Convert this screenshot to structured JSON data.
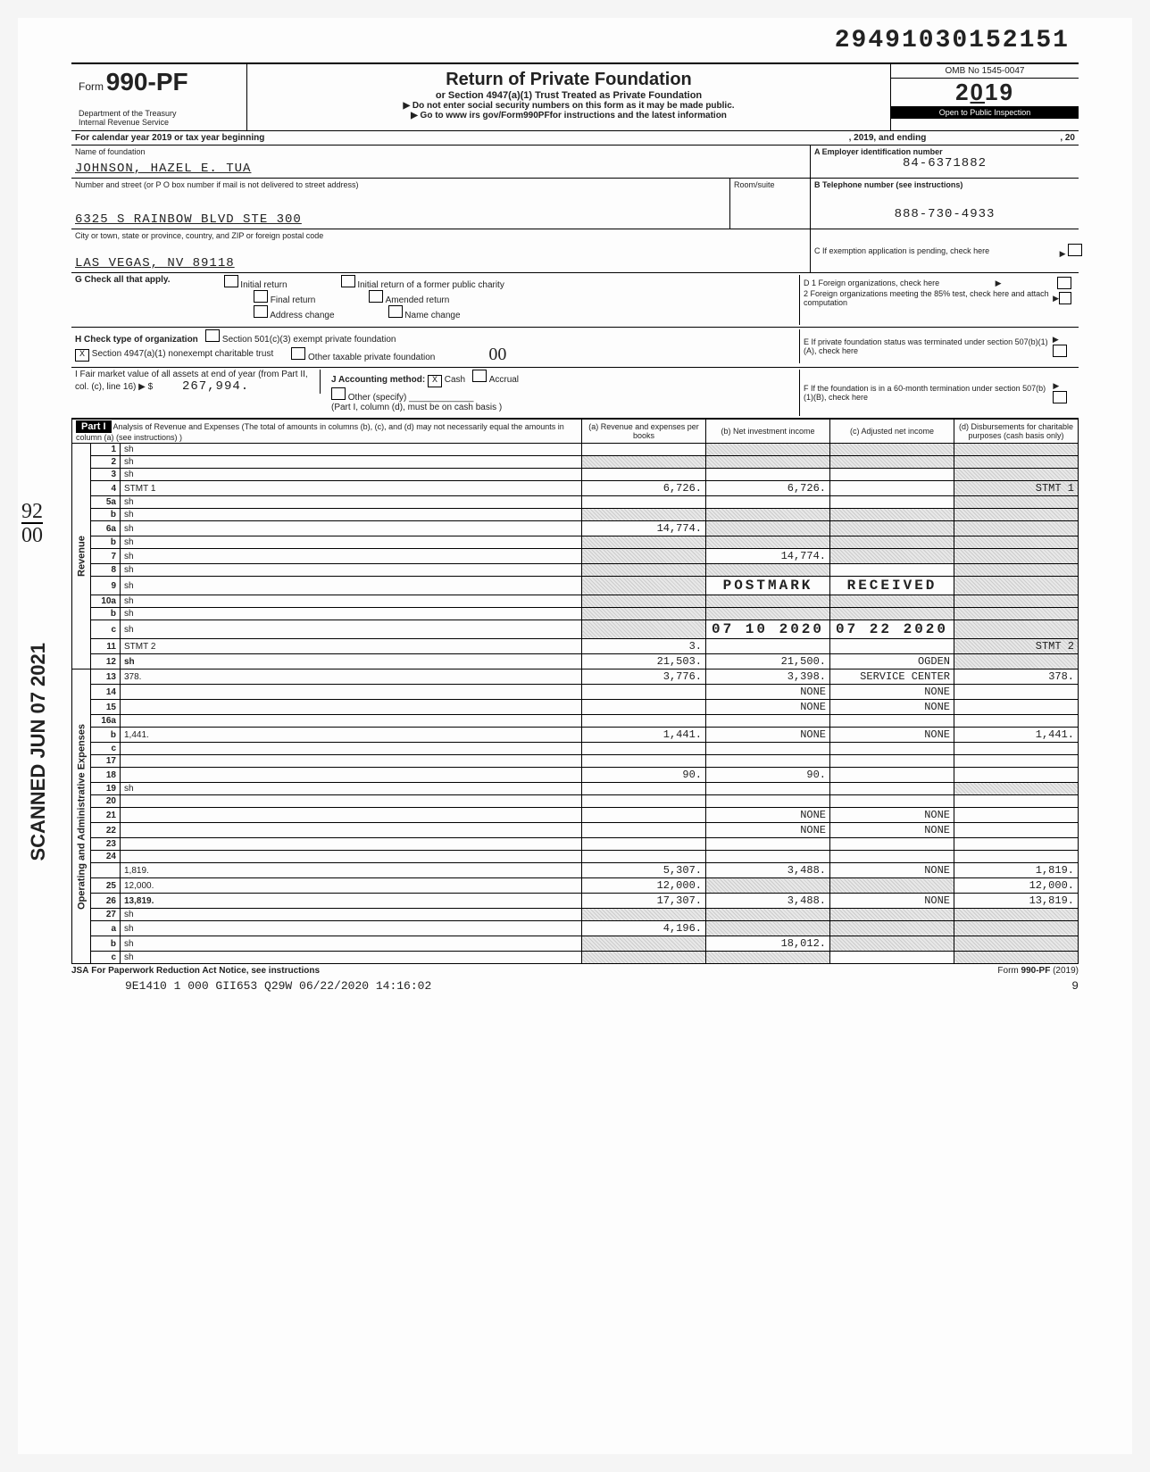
{
  "doc_id": "29491030152151",
  "form": {
    "prefix": "Form",
    "number": "990-PF",
    "dept1": "Department of the Treasury",
    "dept2": "Internal Revenue Service",
    "title": "Return of Private Foundation",
    "subtitle": "or Section 4947(a)(1) Trust Treated as Private Foundation",
    "instr1": "Do not enter social security numbers on this form as it may be made public.",
    "instr2": "Go to www irs gov/Form990PFfor instructions and the latest information",
    "omb": "OMB No 1545-0047",
    "year": "2019",
    "inspection": "Open to Public Inspection"
  },
  "cal_year": {
    "prefix": "For calendar year 2019 or tax year beginning",
    "mid": ", 2019, and ending",
    "end": ", 20"
  },
  "a": {
    "label": "A  Employer identification number",
    "name_label": "Name of foundation",
    "name": "JOHNSON, HAZEL E. TUA",
    "ein": "84-6371882",
    "addr_label": "Number and street (or P O  box number if mail is not delivered to street address)",
    "room_label": "Room/suite",
    "b_label": "B  Telephone number (see instructions)",
    "addr": "6325 S RAINBOW BLVD STE 300",
    "phone": "888-730-4933",
    "city_label": "City or town, state or province, country, and ZIP or foreign postal code",
    "city": "LAS VEGAS, NV 89118",
    "c_label": "C  If exemption application is pending, check here"
  },
  "g": {
    "label": "G  Check all that apply.",
    "initial": "Initial return",
    "initial_former": "Initial return of a former public charity",
    "final": "Final return",
    "amended": "Amended return",
    "addr_change": "Address change",
    "name_change": "Name change"
  },
  "d": {
    "d1": "D  1  Foreign organizations, check here",
    "d2": "2  Foreign organizations meeting the 85% test, check here and attach computation"
  },
  "h": {
    "label": "H  Check type of organization",
    "s501": "Section 501(c)(3) exempt private foundation",
    "s4947": "Section 4947(a)(1) nonexempt charitable trust",
    "other_tax": "Other taxable private foundation",
    "x": "X",
    "oo": "00"
  },
  "e": "E  If private foundation status was terminated under section 507(b)(1)(A), check here",
  "i": {
    "label": "I  Fair market value of all assets at end of year (from Part II, col. (c), line 16) ▶ $",
    "val": "267,994.",
    "j_label": "J Accounting method:",
    "cash": "Cash",
    "accrual": "Accrual",
    "other": "Other (specify)",
    "note": "(Part I, column (d), must be on cash basis )"
  },
  "f": "F  If the foundation is in a 60-month termination under section 507(b)(1)(B), check here",
  "part1": {
    "head": "Part I",
    "title": "Analysis of Revenue and Expenses (The total of amounts in columns (b), (c), and (d) may not necessarily equal the amounts in column (a) (see instructions) )",
    "col_a": "(a) Revenue and expenses per books",
    "col_b": "(b) Net investment income",
    "col_c": "(c) Adjusted net income",
    "col_d": "(d) Disbursements for charitable purposes (cash basis only)"
  },
  "sections": {
    "revenue": "Revenue",
    "opex": "Operating and Administrative Expenses"
  },
  "rows": [
    {
      "n": "1",
      "d": "sh",
      "a": "",
      "b": "sh",
      "c": "sh"
    },
    {
      "n": "2",
      "d": "sh",
      "a": "sh",
      "b": "sh",
      "c": "sh"
    },
    {
      "n": "3",
      "d": "sh",
      "a": "",
      "b": "",
      "c": ""
    },
    {
      "n": "4",
      "d": "STMT 1",
      "a": "6,726.",
      "b": "6,726.",
      "c": "",
      "dsh": true
    },
    {
      "n": "5a",
      "d": "sh",
      "a": "",
      "b": "",
      "c": ""
    },
    {
      "n": "b",
      "d": "sh",
      "a": "sh",
      "b": "sh",
      "c": "sh"
    },
    {
      "n": "6a",
      "d": "sh",
      "a": "14,774.",
      "b": "sh",
      "c": "sh"
    },
    {
      "n": "b",
      "d": "sh",
      "a": "sh",
      "b": "sh",
      "c": "sh"
    },
    {
      "n": "7",
      "d": "sh",
      "a": "sh",
      "b": "14,774.",
      "c": "sh"
    },
    {
      "n": "8",
      "d": "sh",
      "a": "sh",
      "b": "sh",
      "c": ""
    },
    {
      "n": "9",
      "d": "sh",
      "a": "sh",
      "b": "POSTMARK",
      "c": "RECEIVED",
      "stamp": true
    },
    {
      "n": "10a",
      "d": "sh",
      "a": "sh",
      "b": "sh",
      "c": "sh"
    },
    {
      "n": "b",
      "d": "sh",
      "a": "sh",
      "b": "sh",
      "c": "sh"
    },
    {
      "n": "c",
      "d": "sh",
      "a": "sh",
      "b": "07 10 2020",
      "c": "07 22 2020",
      "stamp": true
    },
    {
      "n": "11",
      "d": "STMT 2",
      "a": "3.",
      "b": "",
      "c": "",
      "dsh": true
    },
    {
      "n": "12",
      "d": "sh",
      "a": "21,503.",
      "b": "21,500.",
      "c": "OGDEN",
      "bold": true
    },
    {
      "n": "13",
      "d": "378.",
      "a": "3,776.",
      "b": "3,398.",
      "c": "SERVICE CENTER"
    },
    {
      "n": "14",
      "d": "",
      "a": "",
      "b": "NONE",
      "c": "NONE"
    },
    {
      "n": "15",
      "d": "",
      "a": "",
      "b": "NONE",
      "c": "NONE"
    },
    {
      "n": "16a",
      "d": "",
      "a": "",
      "b": "",
      "c": ""
    },
    {
      "n": "b",
      "d": "1,441.",
      "a": "1,441.",
      "b": "NONE",
      "c": "NONE"
    },
    {
      "n": "c",
      "d": "",
      "a": "",
      "b": "",
      "c": ""
    },
    {
      "n": "17",
      "d": "",
      "a": "",
      "b": "",
      "c": ""
    },
    {
      "n": "18",
      "d": "",
      "a": "90.",
      "b": "90.",
      "c": ""
    },
    {
      "n": "19",
      "d": "sh",
      "a": "",
      "b": "",
      "c": ""
    },
    {
      "n": "20",
      "d": "",
      "a": "",
      "b": "",
      "c": ""
    },
    {
      "n": "21",
      "d": "",
      "a": "",
      "b": "NONE",
      "c": "NONE"
    },
    {
      "n": "22",
      "d": "",
      "a": "",
      "b": "NONE",
      "c": "NONE"
    },
    {
      "n": "23",
      "d": "",
      "a": "",
      "b": "",
      "c": ""
    },
    {
      "n": "24",
      "d": "",
      "a": "",
      "b": "",
      "c": "",
      "bold": true
    },
    {
      "n": "",
      "d": "1,819.",
      "a": "5,307.",
      "b": "3,488.",
      "c": "NONE"
    },
    {
      "n": "25",
      "d": "12,000.",
      "a": "12,000.",
      "b": "sh",
      "c": "sh"
    },
    {
      "n": "26",
      "d": "13,819.",
      "a": "17,307.",
      "b": "3,488.",
      "c": "NONE",
      "bold": true
    },
    {
      "n": "27",
      "d": "sh",
      "a": "sh",
      "b": "sh",
      "c": "sh"
    },
    {
      "n": "a",
      "d": "sh",
      "a": "4,196.",
      "b": "sh",
      "c": "sh"
    },
    {
      "n": "b",
      "d": "sh",
      "a": "sh",
      "b": "18,012.",
      "c": "sh"
    },
    {
      "n": "c",
      "d": "sh",
      "a": "sh",
      "b": "sh",
      "c": ""
    }
  ],
  "footer": {
    "jsa": "JSA",
    "paperwork": "For Paperwork Reduction Act Notice, see instructions",
    "form_ref": "Form 990-PF (2019)",
    "code": "9E1410 1 000     GII653 Q29W 06/22/2020 14:16:02",
    "page": "9"
  },
  "stamps": {
    "scanned": "SCANNED JUN 07 2021",
    "hw1": "92",
    "hw2": "00"
  }
}
